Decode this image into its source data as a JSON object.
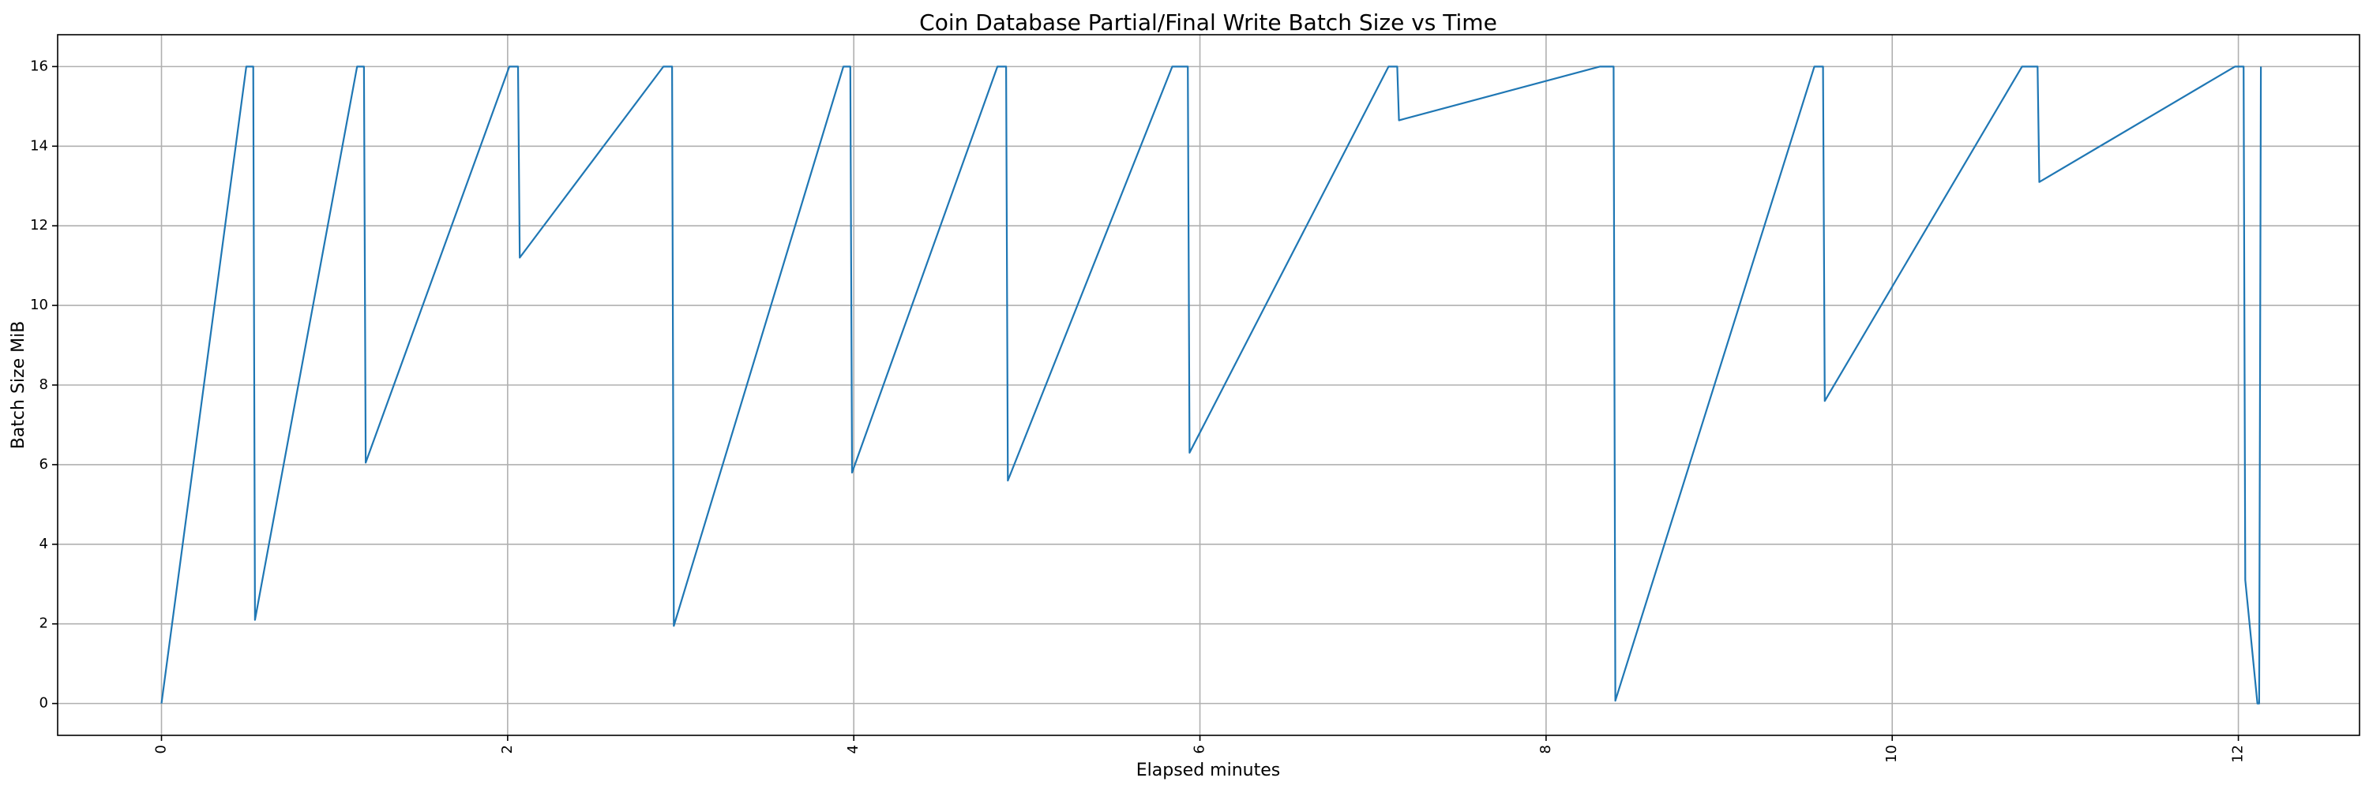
{
  "chart_data": {
    "type": "line",
    "title": "Coin Database Partial/Final Write Batch Size vs Time",
    "xlabel": "Elapsed minutes",
    "ylabel": "Batch Size MiB",
    "xlim": [
      -0.6,
      12.7
    ],
    "ylim": [
      -0.8,
      16.8
    ],
    "xticks": [
      0,
      2,
      4,
      6,
      8,
      10,
      12
    ],
    "yticks": [
      0,
      2,
      4,
      6,
      8,
      10,
      12,
      14,
      16
    ],
    "xtick_rotation": 90,
    "grid": true,
    "series": [
      {
        "color": "#1f77b4",
        "x": [
          0,
          0.49,
          0.53,
          0.54,
          1.13,
          1.17,
          1.18,
          2.01,
          2.06,
          2.07,
          2.9,
          2.95,
          2.96,
          3.94,
          3.98,
          3.99,
          4.83,
          4.88,
          4.89,
          5.84,
          5.93,
          5.94,
          7.09,
          7.14,
          7.15,
          8.31,
          8.39,
          8.4,
          9.55,
          9.6,
          9.61,
          10.75,
          10.84,
          10.85,
          11.98,
          12.03,
          12.04,
          12.11,
          12.12,
          12.13
        ],
        "y": [
          0,
          16,
          16,
          2.1,
          16,
          16,
          6.05,
          16,
          16,
          11.2,
          16,
          16,
          1.95,
          16,
          16,
          5.8,
          16,
          16,
          5.6,
          16,
          16,
          6.3,
          16,
          16,
          14.65,
          16,
          16,
          0.07,
          16,
          16,
          7.6,
          16,
          16,
          13.1,
          16,
          16,
          3.1,
          0,
          0,
          16
        ]
      }
    ]
  }
}
